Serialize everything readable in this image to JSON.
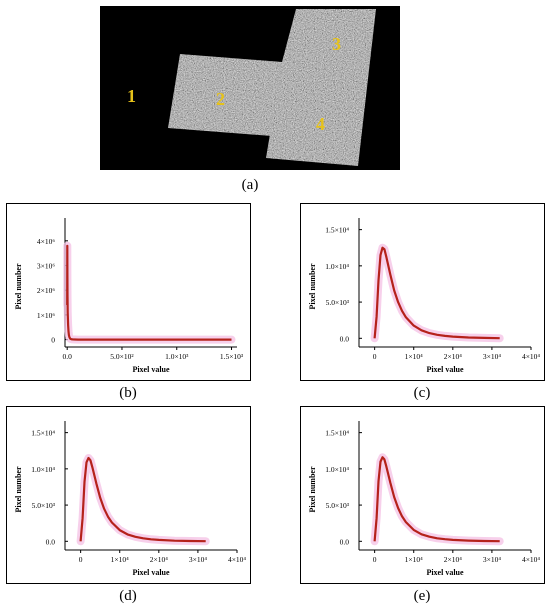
{
  "figure": {
    "panel_a": {
      "caption": "(a)",
      "regions": [
        "1",
        "2",
        "3",
        "4"
      ]
    },
    "captions": [
      "(b)",
      "(c)",
      "(d)",
      "(e)"
    ]
  },
  "chart_data": [
    {
      "id": "b",
      "type": "line",
      "xlabel": "Pixel value",
      "ylabel": "Pixel number",
      "xlim": [
        -20,
        1550
      ],
      "ylim": [
        -300000,
        4600000
      ],
      "x_ticks": [
        "0.0",
        "5.0×10²",
        "1.0×10³",
        "1.5×10³"
      ],
      "x_tick_values": [
        0,
        500,
        1000,
        1500
      ],
      "y_ticks": [
        "0",
        "1×10⁶",
        "2×10⁶",
        "3×10⁶",
        "4×10⁶"
      ],
      "y_tick_values": [
        0,
        1000000,
        2000000,
        3000000,
        4000000
      ],
      "series_color": "#b5221b",
      "band_color": "#f4c0e4",
      "series": [
        {
          "x": [
            0,
            1,
            2,
            3,
            5,
            8,
            12,
            16,
            20,
            25,
            30,
            40,
            50,
            70,
            100,
            200,
            400,
            800,
            1200,
            1500
          ],
          "y": [
            1400000,
            3800000,
            2600000,
            1800000,
            1100000,
            600000,
            330000,
            180000,
            100000,
            55000,
            30000,
            12000,
            6000,
            2000,
            800,
            0,
            0,
            0,
            0,
            0
          ]
        }
      ]
    },
    {
      "id": "c",
      "type": "line",
      "xlabel": "Pixel value",
      "ylabel": "Pixel number",
      "xlim": [
        -4000,
        40000
      ],
      "ylim": [
        -1200,
        15500
      ],
      "x_ticks": [
        "0",
        "1×10⁴",
        "2×10⁴",
        "3×10⁴",
        "4×10⁴"
      ],
      "x_tick_values": [
        0,
        10000,
        20000,
        30000,
        40000
      ],
      "y_ticks": [
        "0.0",
        "5.0×10³",
        "1.0×10⁴",
        "1.5×10⁴"
      ],
      "y_tick_values": [
        0,
        5000,
        10000,
        15000
      ],
      "series_color": "#b5221b",
      "band_color": "#f4c0e4",
      "series": [
        {
          "x": [
            0,
            500,
            1000,
            1500,
            2000,
            2500,
            3000,
            4000,
            5000,
            6000,
            7000,
            8000,
            10000,
            12000,
            14000,
            16000,
            18000,
            20000,
            24000,
            28000,
            32000
          ],
          "y": [
            0,
            3000,
            8000,
            11500,
            12500,
            12300,
            11200,
            8800,
            6600,
            5000,
            3800,
            2900,
            1750,
            1100,
            720,
            480,
            330,
            230,
            110,
            50,
            20
          ]
        }
      ]
    },
    {
      "id": "d",
      "type": "line",
      "xlabel": "Pixel value",
      "ylabel": "Pixel number",
      "xlim": [
        -4000,
        40000
      ],
      "ylim": [
        -1200,
        15500
      ],
      "x_ticks": [
        "0",
        "1×10⁴",
        "2×10⁴",
        "3×10⁴",
        "4×10⁴"
      ],
      "x_tick_values": [
        0,
        10000,
        20000,
        30000,
        40000
      ],
      "y_ticks": [
        "0.0",
        "5.0×10³",
        "1.0×10⁴",
        "1.5×10⁴"
      ],
      "y_tick_values": [
        0,
        5000,
        10000,
        15000
      ],
      "series_color": "#b5221b",
      "band_color": "#f4c0e4",
      "series": [
        {
          "x": [
            0,
            500,
            1000,
            1500,
            2000,
            2500,
            3000,
            4000,
            5000,
            6000,
            7000,
            8000,
            10000,
            12000,
            14000,
            16000,
            18000,
            20000,
            24000,
            28000,
            32000
          ],
          "y": [
            0,
            3200,
            8200,
            10900,
            11500,
            11200,
            10200,
            8000,
            6000,
            4500,
            3400,
            2600,
            1550,
            950,
            620,
            410,
            280,
            190,
            90,
            40,
            15
          ]
        }
      ]
    },
    {
      "id": "e",
      "type": "line",
      "xlabel": "Pixel value",
      "ylabel": "Pixel number",
      "xlim": [
        -4000,
        40000
      ],
      "ylim": [
        -1200,
        15500
      ],
      "x_ticks": [
        "0",
        "1×10⁴",
        "2×10⁴",
        "3×10⁴",
        "4×10⁴"
      ],
      "x_tick_values": [
        0,
        10000,
        20000,
        30000,
        40000
      ],
      "y_ticks": [
        "0.0",
        "5.0×10³",
        "1.0×10⁴",
        "1.5×10⁴"
      ],
      "y_tick_values": [
        0,
        5000,
        10000,
        15000
      ],
      "series_color": "#b5221b",
      "band_color": "#f4c0e4",
      "series": [
        {
          "x": [
            0,
            500,
            1000,
            1500,
            2000,
            2500,
            3000,
            4000,
            5000,
            6000,
            7000,
            8000,
            10000,
            12000,
            14000,
            16000,
            18000,
            20000,
            24000,
            28000,
            32000
          ],
          "y": [
            0,
            3200,
            8300,
            11000,
            11600,
            11300,
            10300,
            8100,
            6100,
            4600,
            3450,
            2650,
            1580,
            970,
            630,
            420,
            285,
            195,
            92,
            42,
            16
          ]
        }
      ]
    }
  ]
}
